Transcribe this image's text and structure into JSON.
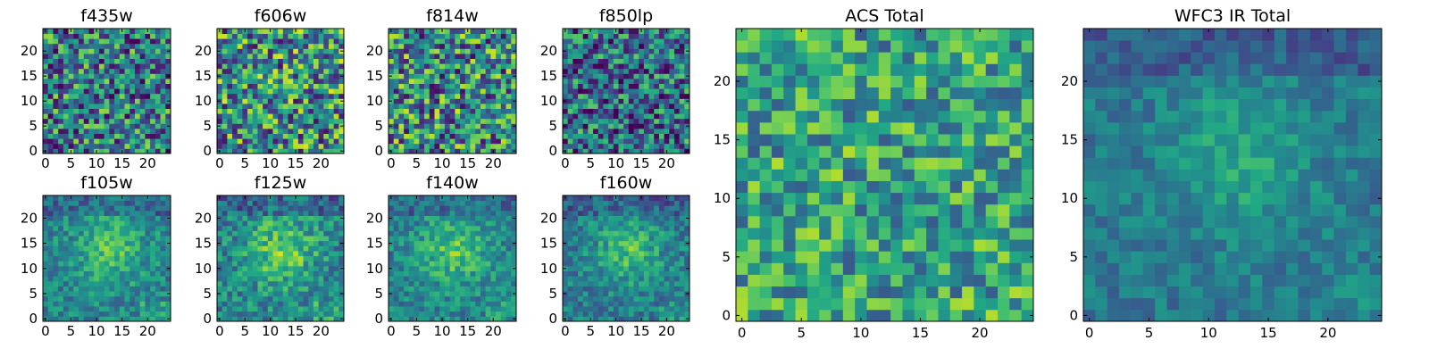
{
  "figure": {
    "colormap": "viridis",
    "axis_range": [
      -0.5,
      24.5
    ],
    "grid": false
  },
  "chart_data": [
    {
      "type": "heatmap",
      "title": "f435w",
      "rows": 25,
      "cols": 25,
      "xlim": [
        -0.5,
        24.5
      ],
      "ylim": [
        -0.5,
        24.5
      ],
      "xticks": [
        0,
        5,
        10,
        15,
        20
      ],
      "yticks": [
        0,
        5,
        10,
        15,
        20
      ],
      "xtick_labels": [
        "0",
        "5",
        "10",
        "15",
        "20"
      ],
      "ytick_labels": [
        "0",
        "5",
        "10",
        "15",
        "20"
      ],
      "pattern": "noise",
      "mean_level": 0.42,
      "spread": 0.42
    },
    {
      "type": "heatmap",
      "title": "f606w",
      "rows": 25,
      "cols": 25,
      "xlim": [
        -0.5,
        24.5
      ],
      "ylim": [
        -0.5,
        24.5
      ],
      "xticks": [
        0,
        5,
        10,
        15,
        20
      ],
      "yticks": [
        0,
        5,
        10,
        15,
        20
      ],
      "xtick_labels": [
        "0",
        "5",
        "10",
        "15",
        "20"
      ],
      "ytick_labels": [
        "0",
        "5",
        "10",
        "15",
        "20"
      ],
      "pattern": "noise",
      "mean_level": 0.5,
      "spread": 0.45
    },
    {
      "type": "heatmap",
      "title": "f814w",
      "rows": 25,
      "cols": 25,
      "xlim": [
        -0.5,
        24.5
      ],
      "ylim": [
        -0.5,
        24.5
      ],
      "xticks": [
        0,
        5,
        10,
        15,
        20
      ],
      "yticks": [
        0,
        5,
        10,
        15,
        20
      ],
      "xtick_labels": [
        "0",
        "5",
        "10",
        "15",
        "20"
      ],
      "ytick_labels": [
        "0",
        "5",
        "10",
        "15",
        "20"
      ],
      "pattern": "noise",
      "mean_level": 0.48,
      "spread": 0.45
    },
    {
      "type": "heatmap",
      "title": "f850lp",
      "rows": 25,
      "cols": 25,
      "xlim": [
        -0.5,
        24.5
      ],
      "ylim": [
        -0.5,
        24.5
      ],
      "xticks": [
        0,
        5,
        10,
        15,
        20
      ],
      "yticks": [
        0,
        5,
        10,
        15,
        20
      ],
      "xtick_labels": [
        "0",
        "5",
        "10",
        "15",
        "20"
      ],
      "ytick_labels": [
        "0",
        "5",
        "10",
        "15",
        "20"
      ],
      "pattern": "noise",
      "mean_level": 0.36,
      "spread": 0.4
    },
    {
      "type": "heatmap",
      "title": "f105w",
      "rows": 25,
      "cols": 25,
      "xlim": [
        -0.5,
        24.5
      ],
      "ylim": [
        -0.5,
        24.5
      ],
      "xticks": [
        0,
        5,
        10,
        15,
        20
      ],
      "yticks": [
        0,
        5,
        10,
        15,
        20
      ],
      "xtick_labels": [
        "0",
        "5",
        "10",
        "15",
        "20"
      ],
      "ytick_labels": [
        "0",
        "5",
        "10",
        "15",
        "20"
      ],
      "pattern": "source",
      "mean_level": 0.45,
      "spread": 0.25
    },
    {
      "type": "heatmap",
      "title": "f125w",
      "rows": 25,
      "cols": 25,
      "xlim": [
        -0.5,
        24.5
      ],
      "ylim": [
        -0.5,
        24.5
      ],
      "xticks": [
        0,
        5,
        10,
        15,
        20
      ],
      "yticks": [
        0,
        5,
        10,
        15,
        20
      ],
      "xtick_labels": [
        "0",
        "5",
        "10",
        "15",
        "20"
      ],
      "ytick_labels": [
        "0",
        "5",
        "10",
        "15",
        "20"
      ],
      "pattern": "source",
      "mean_level": 0.45,
      "spread": 0.3
    },
    {
      "type": "heatmap",
      "title": "f140w",
      "rows": 25,
      "cols": 25,
      "xlim": [
        -0.5,
        24.5
      ],
      "ylim": [
        -0.5,
        24.5
      ],
      "xticks": [
        0,
        5,
        10,
        15,
        20
      ],
      "yticks": [
        0,
        5,
        10,
        15,
        20
      ],
      "xtick_labels": [
        "0",
        "5",
        "10",
        "15",
        "20"
      ],
      "ytick_labels": [
        "0",
        "5",
        "10",
        "15",
        "20"
      ],
      "pattern": "source",
      "mean_level": 0.45,
      "spread": 0.25
    },
    {
      "type": "heatmap",
      "title": "f160w",
      "rows": 25,
      "cols": 25,
      "xlim": [
        -0.5,
        24.5
      ],
      "ylim": [
        -0.5,
        24.5
      ],
      "xticks": [
        0,
        5,
        10,
        15,
        20
      ],
      "yticks": [
        0,
        5,
        10,
        15,
        20
      ],
      "xtick_labels": [
        "0",
        "5",
        "10",
        "15",
        "20"
      ],
      "ytick_labels": [
        "0",
        "5",
        "10",
        "15",
        "20"
      ],
      "pattern": "source",
      "mean_level": 0.42,
      "spread": 0.25
    },
    {
      "type": "heatmap",
      "title": "ACS Total",
      "rows": 25,
      "cols": 25,
      "xlim": [
        -0.5,
        24.5
      ],
      "ylim": [
        -0.5,
        24.5
      ],
      "xticks": [
        0,
        5,
        10,
        15,
        20
      ],
      "yticks": [
        0,
        5,
        10,
        15,
        20
      ],
      "xtick_labels": [
        "0",
        "5",
        "10",
        "15",
        "20"
      ],
      "ytick_labels": [
        "0",
        "5",
        "10",
        "15",
        "20"
      ],
      "pattern": "noise",
      "mean_level": 0.58,
      "spread": 0.3
    },
    {
      "type": "heatmap",
      "title": "WFC3 IR Total",
      "rows": 25,
      "cols": 25,
      "xlim": [
        -0.5,
        24.5
      ],
      "ylim": [
        -0.5,
        24.5
      ],
      "xticks": [
        0,
        5,
        10,
        15,
        20
      ],
      "yticks": [
        0,
        5,
        10,
        15,
        20
      ],
      "xtick_labels": [
        "0",
        "5",
        "10",
        "15",
        "20"
      ],
      "ytick_labels": [
        "0",
        "5",
        "10",
        "15",
        "20"
      ],
      "pattern": "source",
      "mean_level": 0.4,
      "spread": 0.18
    }
  ]
}
